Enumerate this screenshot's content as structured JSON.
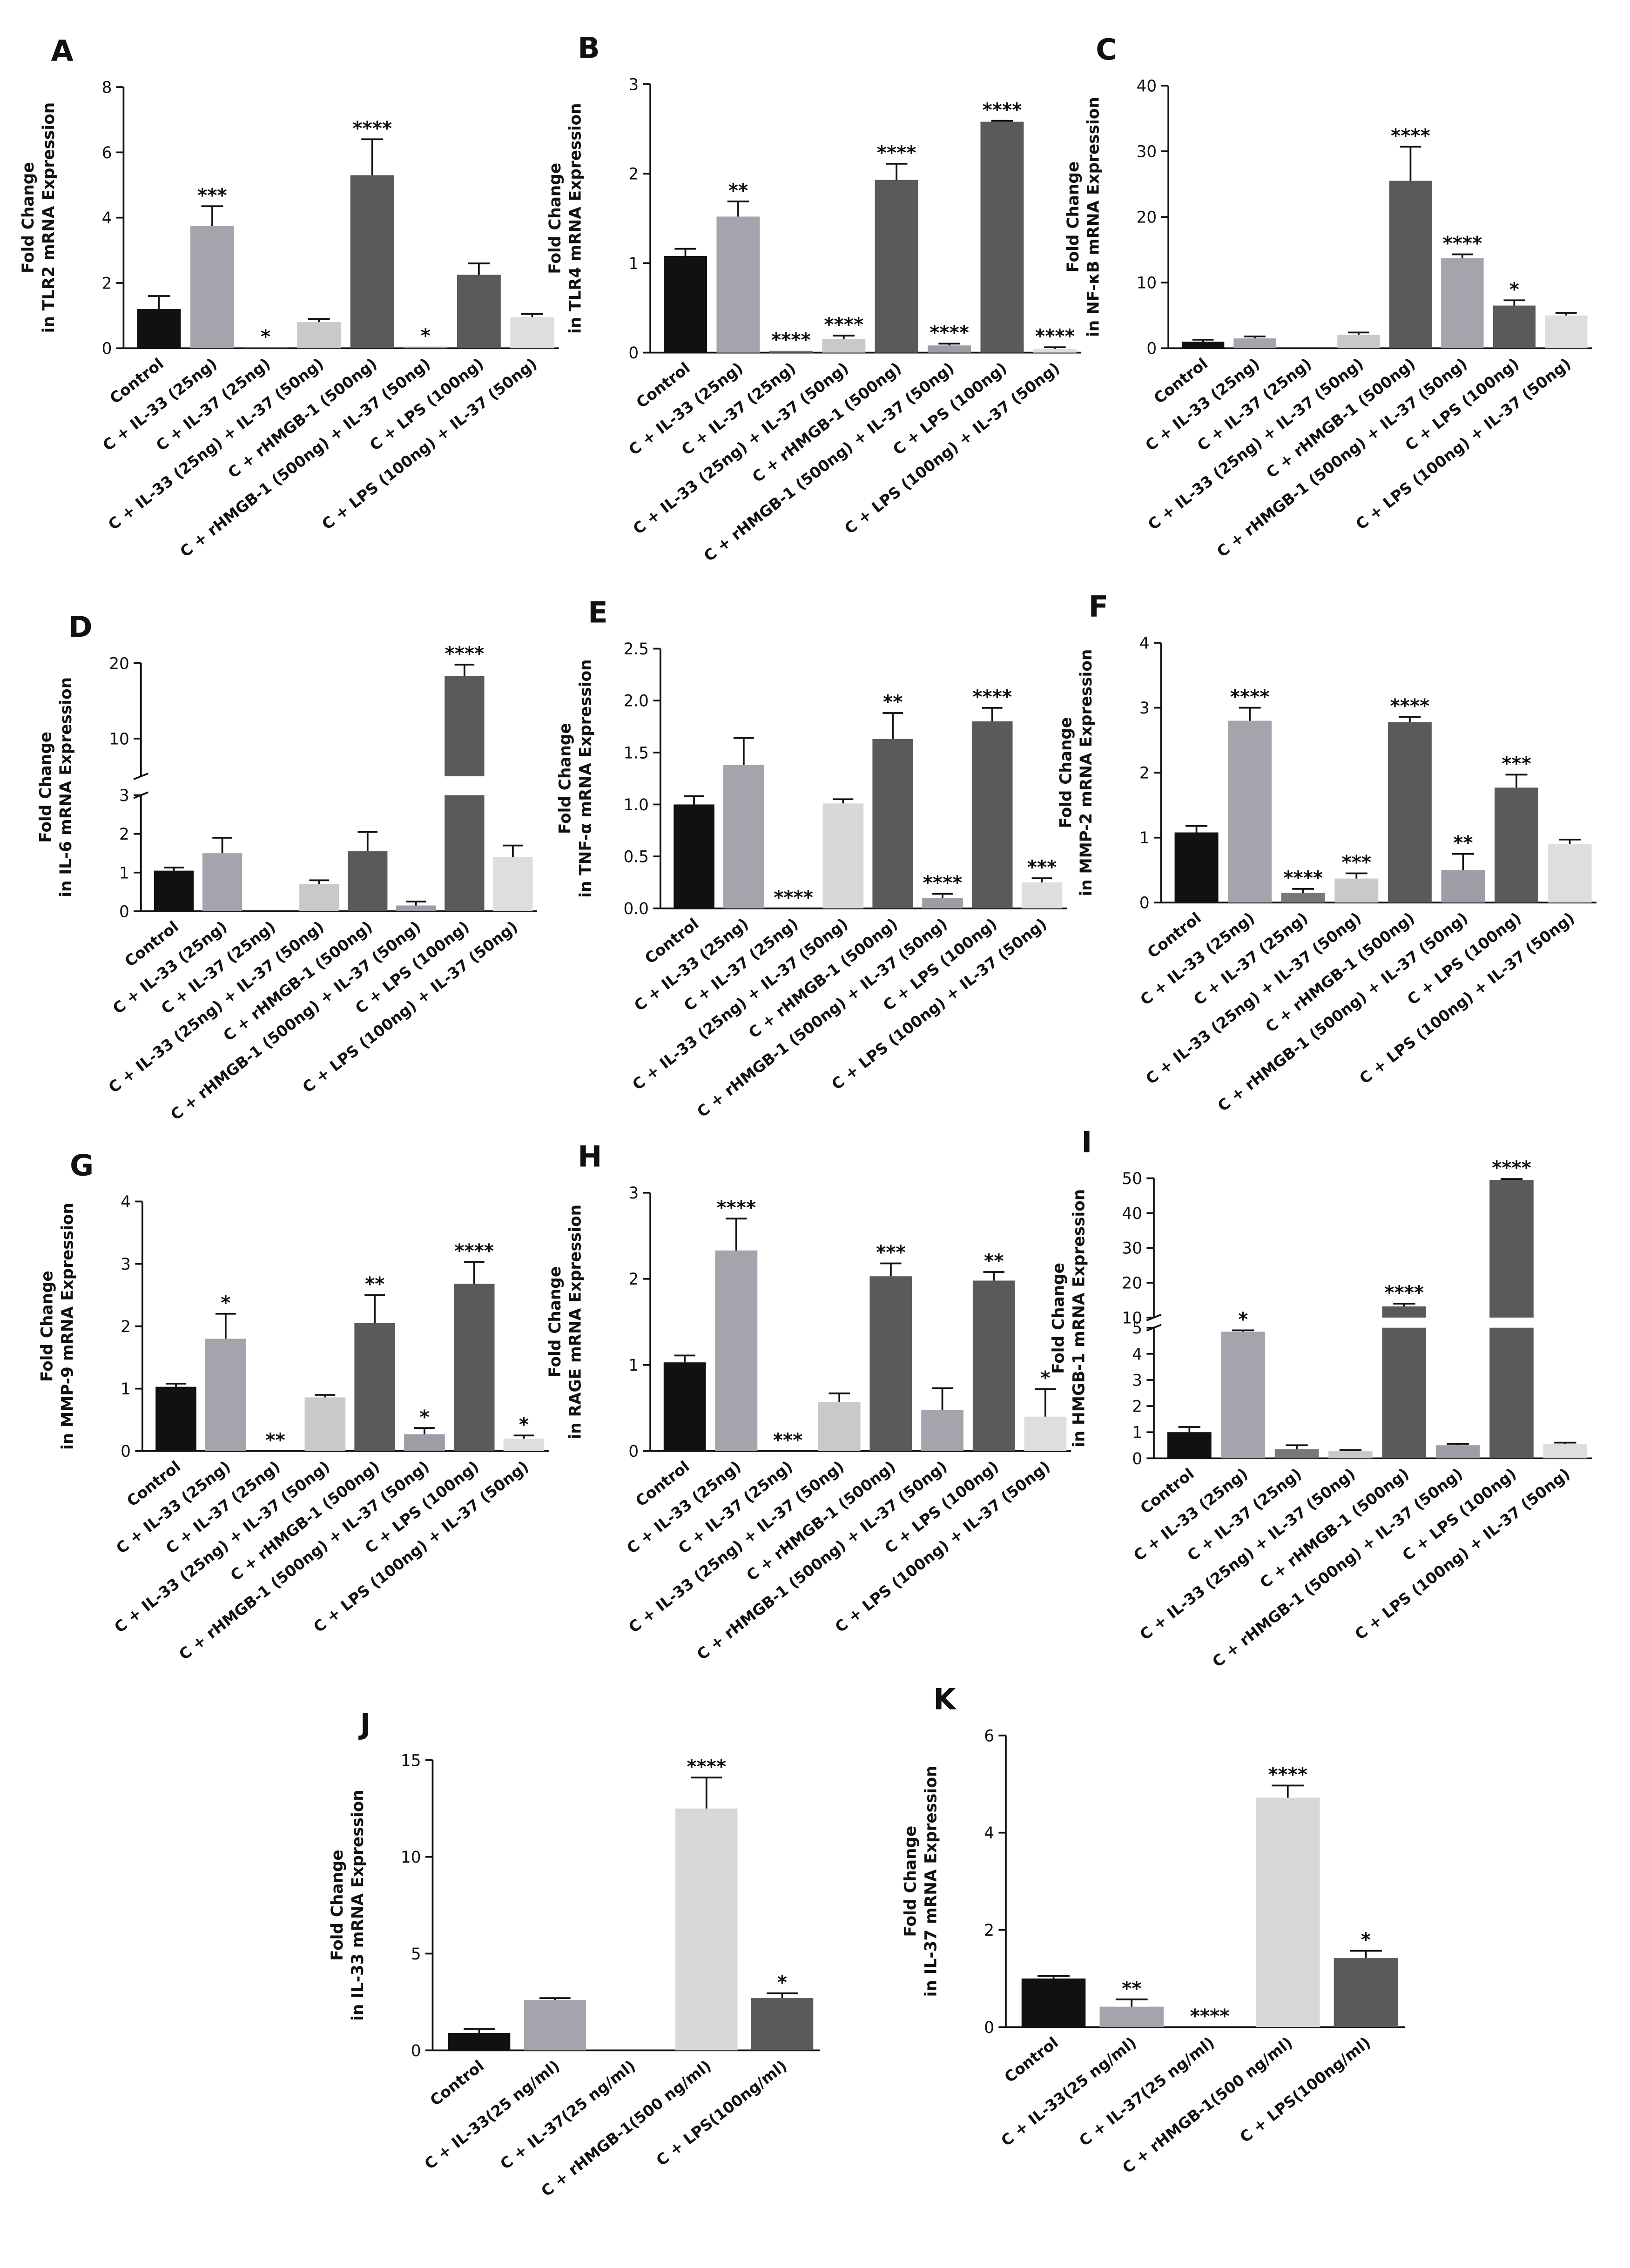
{
  "chart_data": [
    {
      "type": "bar",
      "panel": "A",
      "ylabel": [
        "Fold Change",
        "in TLR2 mRNA Expression"
      ],
      "categories": [
        "Control",
        "C + IL-33 (25ng)",
        "C + IL-37 (25ng)",
        "C + IL-33 (25ng) + IL-37 (50ng)",
        "C + rHMGB-1 (500ng)",
        "C + rHMGB-1 (500ng) + IL-37 (50ng)",
        "C + LPS (100ng)",
        "C + LPS (100ng) + IL-37 (50ng)"
      ],
      "values": [
        1.2,
        3.75,
        0.02,
        0.8,
        5.3,
        0.05,
        2.25,
        0.95
      ],
      "errors": [
        0.4,
        0.6,
        null,
        0.1,
        1.1,
        null,
        0.35,
        0.1
      ],
      "annotations": [
        null,
        "***",
        "*",
        null,
        "****",
        "*",
        null,
        null
      ],
      "colors": [
        "#111111",
        "#a4a4ac",
        "#777777",
        "#c9c9c9",
        "#5a5a5a",
        "#9d9da6",
        "#5a5a5a",
        "#dedede"
      ],
      "ylim": [
        0,
        8
      ],
      "yticks": [
        0,
        2,
        4,
        6,
        8
      ]
    },
    {
      "type": "bar",
      "panel": "B",
      "ylabel": [
        "Fold Change",
        "in TLR4 mRNA Expression"
      ],
      "categories": [
        "Control",
        "C + IL-33 (25ng)",
        "C + IL-37 (25ng)",
        "C + IL-33 (25ng) + IL-37 (50ng)",
        "C + rHMGB-1 (500ng)",
        "C + rHMGB-1 (500ng) + IL-37 (50ng)",
        "C + LPS (100ng)",
        "C + LPS (100ng) + IL-37 (50ng)"
      ],
      "values": [
        1.08,
        1.52,
        0.02,
        0.15,
        1.93,
        0.08,
        2.58,
        0.04
      ],
      "errors": [
        0.08,
        0.17,
        null,
        0.04,
        0.18,
        0.02,
        0.01,
        0.02
      ],
      "annotations": [
        null,
        "**",
        "****",
        "****",
        "****",
        "****",
        "****",
        "****"
      ],
      "colors": [
        "#111111",
        "#a4a4ac",
        "#777777",
        "#c9c9c9",
        "#5a5a5a",
        "#9d9da6",
        "#5a5a5a",
        "#dedede"
      ],
      "ylim": [
        0,
        3
      ],
      "yticks": [
        0,
        1,
        2,
        3
      ]
    },
    {
      "type": "bar",
      "panel": "C",
      "ylabel": [
        "Fold Change",
        "in NF-κB mRNA Expression"
      ],
      "categories": [
        "Control",
        "C + IL-33 (25ng)",
        "C + IL-37 (25ng)",
        "C + IL-33 (25ng) + IL-37 (50ng)",
        "C + rHMGB-1 (500ng)",
        "C + rHMGB-1 (500ng) + IL-37 (50ng)",
        "C + LPS (100ng)",
        "C + LPS (100ng) + IL-37 (50ng)"
      ],
      "values": [
        1,
        1.5,
        0,
        2,
        25.5,
        13.7,
        6.5,
        5
      ],
      "errors": [
        0.3,
        0.3,
        null,
        0.4,
        5.2,
        0.6,
        0.8,
        0.4
      ],
      "annotations": [
        null,
        null,
        null,
        null,
        "****",
        "****",
        "*",
        null
      ],
      "colors": [
        "#111111",
        "#a4a4ac",
        "#777777",
        "#c9c9c9",
        "#5a5a5a",
        "#a4a4ac",
        "#5a5a5a",
        "#dedede"
      ],
      "ylim": [
        0,
        40
      ],
      "yticks": [
        0,
        10,
        20,
        30,
        40
      ]
    },
    {
      "type": "bar",
      "panel": "D",
      "ylabel": [
        "Fold Change",
        "in IL-6 mRNA Expression"
      ],
      "categories": [
        "Control",
        "C + IL-33 (25ng)",
        "C + IL-37 (25ng)",
        "C + IL-33 (25ng) + IL-37 (50ng)",
        "C + rHMGB-1 (500ng)",
        "C + rHMGB-1 (500ng) + IL-37 (50ng)",
        "C + LPS (100ng)",
        "C + LPS (100ng) + IL-37 (50ng)"
      ],
      "values": [
        1.05,
        1.5,
        0,
        0.7,
        1.55,
        0.15,
        18.3,
        1.4
      ],
      "errors": [
        0.08,
        0.4,
        null,
        0.1,
        0.5,
        0.1,
        1.5,
        0.3
      ],
      "annotations": [
        null,
        null,
        null,
        null,
        null,
        null,
        "****",
        null
      ],
      "colors": [
        "#111111",
        "#a4a4ac",
        "#777777",
        "#c9c9c9",
        "#5a5a5a",
        "#9d9da6",
        "#5a5a5a",
        "#dedede"
      ],
      "ylim": [
        0,
        20
      ],
      "ybreak": [
        3,
        5
      ],
      "yticks": [
        0,
        1,
        2,
        3,
        10,
        20
      ]
    },
    {
      "type": "bar",
      "panel": "E",
      "ylabel": [
        "Fold Change",
        "in TNF-α mRNA Expression"
      ],
      "categories": [
        "Control",
        "C + IL-33 (25ng)",
        "C + IL-37 (25ng)",
        "C + IL-33 (25ng) + IL-37 (50ng)",
        "C + rHMGB-1 (500ng)",
        "C + rHMGB-1 (500ng) + IL-37 (50ng)",
        "C + LPS (100ng)",
        "C + LPS (100ng) + IL-37 (50ng)"
      ],
      "values": [
        1.0,
        1.38,
        0,
        1.01,
        1.63,
        0.1,
        1.8,
        0.25
      ],
      "errors": [
        0.08,
        0.26,
        null,
        0.04,
        0.25,
        0.04,
        0.13,
        0.04
      ],
      "annotations": [
        null,
        null,
        "****",
        null,
        "**",
        "****",
        "****",
        "***"
      ],
      "colors": [
        "#111111",
        "#a4a4ac",
        "#777777",
        "#d8d8d8",
        "#5a5a5a",
        "#9d9da6",
        "#5a5a5a",
        "#dedede"
      ],
      "ylim": [
        0,
        2.5
      ],
      "yticks": [
        {
          "value": 0,
          "label": "0.0"
        },
        {
          "value": 0.5,
          "label": "0.5"
        },
        {
          "value": 1,
          "label": "1.0"
        },
        {
          "value": 1.5,
          "label": "1.5"
        },
        {
          "value": 2,
          "label": "2.0"
        },
        {
          "value": 2.5,
          "label": "2.5"
        }
      ]
    },
    {
      "type": "bar",
      "panel": "F",
      "ylabel": [
        "Fold Change",
        "in MMP-2 mRNA Expression"
      ],
      "categories": [
        "Control",
        "C + IL-33 (25ng)",
        "C + IL-37 (25ng)",
        "C + IL-33 (25ng) + IL-37 (50ng)",
        "C + rHMGB-1 (500ng)",
        "C + rHMGB-1 (500ng) + IL-37 (50ng)",
        "C + LPS (100ng)",
        "C + LPS (100ng) + IL-37 (50ng)"
      ],
      "values": [
        1.08,
        2.8,
        0.15,
        0.37,
        2.78,
        0.5,
        1.77,
        0.9
      ],
      "errors": [
        0.1,
        0.2,
        0.06,
        0.08,
        0.08,
        0.25,
        0.2,
        0.07
      ],
      "annotations": [
        null,
        "****",
        "****",
        "***",
        "****",
        "**",
        "***",
        null
      ],
      "colors": [
        "#111111",
        "#a4a4ac",
        "#777777",
        "#c9c9c9",
        "#5a5a5a",
        "#9d9da6",
        "#5a5a5a",
        "#dedede"
      ],
      "ylim": [
        0,
        4
      ],
      "yticks": [
        0,
        1,
        2,
        3,
        4
      ]
    },
    {
      "type": "bar",
      "panel": "G",
      "ylabel": [
        "Fold Change",
        "in MMP-9 mRNA Expression"
      ],
      "categories": [
        "Control",
        "C + IL-33 (25ng)",
        "C + IL-37 (25ng)",
        "C + IL-33 (25ng) + IL-37 (50ng)",
        "C + rHMGB-1 (500ng)",
        "C + rHMGB-1 (500ng) + IL-37 (50ng)",
        "C + LPS (100ng)",
        "C + LPS (100ng) + IL-37 (50ng)"
      ],
      "values": [
        1.03,
        1.8,
        0,
        0.86,
        2.05,
        0.27,
        2.68,
        0.2
      ],
      "errors": [
        0.05,
        0.4,
        null,
        0.04,
        0.45,
        0.1,
        0.35,
        0.05
      ],
      "annotations": [
        null,
        "*",
        "**",
        null,
        "**",
        "*",
        "****",
        "*"
      ],
      "colors": [
        "#111111",
        "#a4a4ac",
        "#777777",
        "#c9c9c9",
        "#5a5a5a",
        "#9d9da6",
        "#5a5a5a",
        "#dedede"
      ],
      "ylim": [
        0,
        4
      ],
      "yticks": [
        0,
        1,
        2,
        3,
        4
      ]
    },
    {
      "type": "bar",
      "panel": "H",
      "ylabel": [
        "Fold Change",
        "in RAGE mRNA Expression"
      ],
      "categories": [
        "Control",
        "C + IL-33 (25ng)",
        "C + IL-37 (25ng)",
        "C + IL-33 (25ng) + IL-37 (50ng)",
        "C + rHMGB-1 (500ng)",
        "C + rHMGB-1 (500ng) + IL-37 (50ng)",
        "C + LPS (100ng)",
        "C + LPS (100ng) + IL-37 (50ng)"
      ],
      "values": [
        1.03,
        2.33,
        0,
        0.57,
        2.03,
        0.48,
        1.98,
        0.4
      ],
      "errors": [
        0.08,
        0.37,
        null,
        0.1,
        0.15,
        0.25,
        0.1,
        0.32
      ],
      "annotations": [
        null,
        "****",
        "***",
        null,
        "***",
        null,
        "**",
        "*"
      ],
      "colors": [
        "#111111",
        "#a4a4ac",
        "#777777",
        "#c9c9c9",
        "#5a5a5a",
        "#a4a4ac",
        "#5a5a5a",
        "#dedede"
      ],
      "ylim": [
        0,
        3
      ],
      "yticks": [
        0,
        1,
        2,
        3
      ]
    },
    {
      "type": "bar",
      "panel": "I",
      "ylabel": [
        "Fold Change",
        "in HMGB-1 mRNA Expression"
      ],
      "categories": [
        "Control",
        "C + IL-33 (25ng)",
        "C + IL-37 (25ng)",
        "C + IL-33 (25ng) + IL-37 (50ng)",
        "C + rHMGB-1 (500ng)",
        "C + rHMGB-1 (500ng) + IL-37 (50ng)",
        "C + LPS (100ng)",
        "C + LPS (100ng) + IL-37 (50ng)"
      ],
      "values": [
        1.0,
        4.85,
        0.35,
        0.27,
        13.2,
        0.5,
        49.5,
        0.55
      ],
      "errors": [
        0.2,
        0.05,
        0.15,
        0.05,
        0.8,
        0.05,
        0.3,
        0.05
      ],
      "annotations": [
        null,
        "*",
        null,
        null,
        "****",
        null,
        "****",
        null
      ],
      "colors": [
        "#111111",
        "#a4a4ac",
        "#777777",
        "#c9c9c9",
        "#5a5a5a",
        "#9d9da6",
        "#5a5a5a",
        "#dedede"
      ],
      "ylim": [
        0,
        50
      ],
      "ybreak": [
        5,
        10
      ],
      "yticks": [
        0,
        1,
        2,
        3,
        4,
        5,
        10,
        20,
        30,
        40,
        50
      ]
    },
    {
      "type": "bar",
      "panel": "J",
      "ylabel": [
        "Fold Change",
        "in IL-33 mRNA Expression"
      ],
      "categories": [
        "Control",
        "C + IL-33(25 ng/ml)",
        "C + IL-37(25 ng/ml)",
        "C + rHMGB-1(500 ng/ml)",
        "C + LPS(100ng/ml)"
      ],
      "values": [
        0.9,
        2.6,
        0,
        12.5,
        2.7
      ],
      "errors": [
        0.2,
        0.1,
        null,
        1.6,
        0.25
      ],
      "annotations": [
        null,
        null,
        null,
        "****",
        "*"
      ],
      "colors": [
        "#111111",
        "#a4a4ac",
        "#777777",
        "#d8d8d8",
        "#5a5a5a"
      ],
      "ylim": [
        0,
        15
      ],
      "yticks": [
        0,
        5,
        10,
        15
      ]
    },
    {
      "type": "bar",
      "panel": "K",
      "ylabel": [
        "Fold Change",
        "in IL-37 mRNA Expression"
      ],
      "categories": [
        "Control",
        "C + IL-33(25 ng/ml)",
        "C + IL-37(25 ng/ml)",
        "C + rHMGB-1(500 ng/ml)",
        "C + LPS(100ng/ml)"
      ],
      "values": [
        1.0,
        0.42,
        0,
        4.72,
        1.42
      ],
      "errors": [
        0.05,
        0.15,
        null,
        0.25,
        0.15
      ],
      "annotations": [
        null,
        "**",
        "****",
        "****",
        "*"
      ],
      "colors": [
        "#111111",
        "#a4a4ac",
        "#777777",
        "#d8d8d8",
        "#5a5a5a"
      ],
      "ylim": [
        0,
        6
      ],
      "yticks": [
        0,
        2,
        4,
        6
      ]
    }
  ]
}
